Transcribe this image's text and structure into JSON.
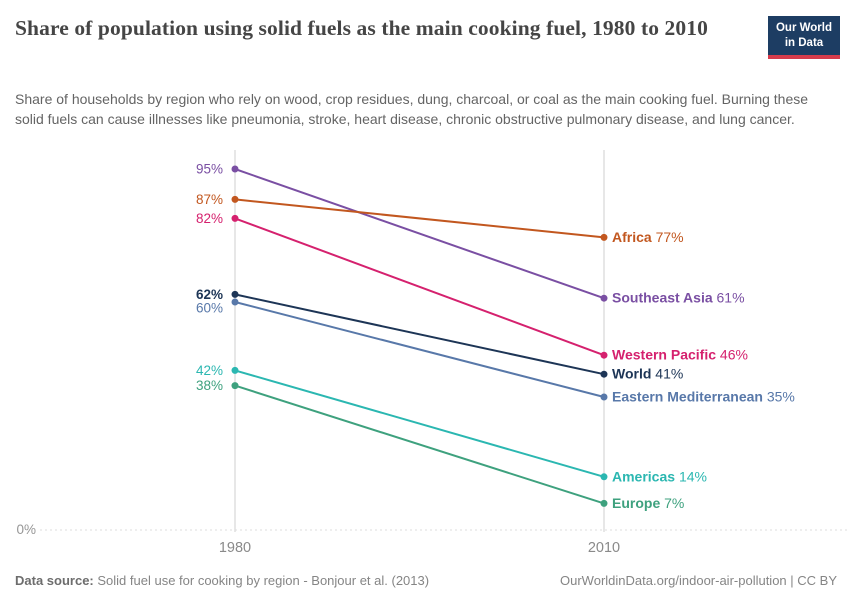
{
  "header": {
    "title": "Share of population using solid fuels as the main cooking fuel, 1980 to 2010",
    "subtitle": "Share of households by region who rely on wood, crop residues, dung, charcoal, or coal as the main cooking fuel. Burning these solid fuels can cause illnesses like pneumonia, stroke, heart disease, chronic obstructive pulmonary disease, and lung cancer.",
    "logo": {
      "line1": "Our World",
      "line2": "in Data",
      "bg_color": "#1d3d63",
      "accent_color": "#d73c4c"
    }
  },
  "chart_data": {
    "type": "line",
    "subtype": "slope",
    "title": "Share of population using solid fuels as the main cooking fuel, 1980 to 2010",
    "unit": "%",
    "x": [
      1980,
      2010
    ],
    "x_tick_labels": [
      "1980",
      "2010"
    ],
    "ylim": [
      0,
      100
    ],
    "baseline_tick_label": "0%",
    "grid": "dashed zero line only",
    "legend_position": "inline right labels",
    "series": [
      {
        "name": "Southeast Asia",
        "values": [
          95,
          61
        ],
        "color": "#7a4fa3",
        "emphasis": false
      },
      {
        "name": "Africa",
        "values": [
          87,
          77
        ],
        "color": "#c2571f",
        "emphasis": false
      },
      {
        "name": "Western Pacific",
        "values": [
          82,
          46
        ],
        "color": "#d5216e",
        "emphasis": false
      },
      {
        "name": "World",
        "values": [
          62,
          41
        ],
        "color": "#1d3556",
        "emphasis": true
      },
      {
        "name": "Eastern Mediterranean",
        "values": [
          60,
          35
        ],
        "color": "#5878a9",
        "emphasis": false
      },
      {
        "name": "Americas",
        "values": [
          42,
          14
        ],
        "color": "#2bb7b1",
        "emphasis": false
      },
      {
        "name": "Europe",
        "values": [
          38,
          7
        ],
        "color": "#3ea17e",
        "emphasis": false
      }
    ]
  },
  "footer": {
    "datasource_label": "Data source:",
    "datasource_text": "Solid fuel use for cooking by region - Bonjour et al. (2013)",
    "link_text": "OurWorldinData.org/indoor-air-pollution | CC BY"
  }
}
